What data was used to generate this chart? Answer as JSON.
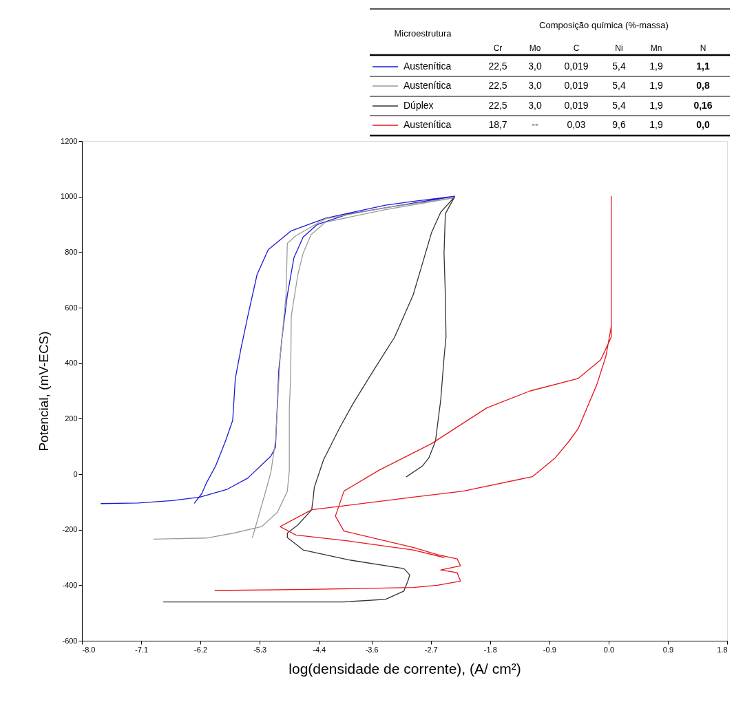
{
  "chart_data": {
    "type": "line",
    "xlabel": "log(densidade de corrente), (A/ cm²)",
    "ylabel": "Potencial, (mV-ECS)",
    "xlim": [
      -8.0,
      1.8
    ],
    "xticks": [
      {
        "value": -8.0,
        "label": "-8.0"
      },
      {
        "value": -7.1,
        "label": "-7.1"
      },
      {
        "value": -6.2,
        "label": "-6.2"
      },
      {
        "value": -5.3,
        "label": "-5.3"
      },
      {
        "value": -4.4,
        "label": "-4.4"
      },
      {
        "value": -3.6,
        "label": "-3.6"
      },
      {
        "value": -2.7,
        "label": "-2.7"
      },
      {
        "value": -1.8,
        "label": "-1.8"
      },
      {
        "value": -0.9,
        "label": "-0.9"
      },
      {
        "value": 0.0,
        "label": "0.0"
      },
      {
        "value": 0.9,
        "label": "0.9"
      },
      {
        "value": 1.8,
        "label": "1.8"
      }
    ],
    "ylim": [
      -600,
      1200
    ],
    "yticks": [
      -600,
      -400,
      -200,
      0,
      200,
      400,
      600,
      800,
      1000,
      1200
    ],
    "grid": false,
    "legend": "top right",
    "annotations": [
      "Microestrutura",
      "Composição química (%-massa)",
      "Cr",
      "Mo",
      "C",
      "Ni",
      "Mn",
      "N",
      "22,5",
      "3,0",
      "0,019",
      "5,4",
      "1,9",
      "1,1",
      "22,5",
      "3,0",
      "0,019",
      "5,4",
      "1,9",
      "0,8",
      "22,5",
      "3,0",
      "0,019",
      "5,4",
      "1,9",
      "0,16",
      "18,7",
      "--",
      "0,03",
      "9,6",
      "1,9",
      "0,0"
    ],
    "series": [
      {
        "name": "Austenítica",
        "color": "#1a1ad6",
        "x": [
          -7.71,
          -7.15,
          -6.63,
          -6.21,
          -5.79,
          -5.48,
          -5.13,
          -5.06,
          -5.01,
          -4.96,
          -4.88,
          -4.78,
          -4.64,
          -4.43,
          -3.94,
          -3.39,
          -2.34,
          -2.97,
          -3.39,
          -4.3,
          -4.82,
          -5.17,
          -5.34,
          -5.48,
          -5.58,
          -5.67,
          -5.71,
          -5.82,
          -5.97,
          -6.11,
          -6.18,
          -6.29
        ],
        "values": [
          -106,
          -104,
          -95,
          -83,
          -54,
          -14,
          65,
          97,
          374,
          494,
          645,
          780,
          854,
          899,
          938,
          960,
          1001,
          983,
          969,
          922,
          877,
          809,
          719,
          570,
          458,
          345,
          194,
          119,
          29,
          -32,
          -70,
          -104
        ]
      },
      {
        "name": "Austenítica",
        "color": "#9a9a9a",
        "x": [
          -6.91,
          -6.11,
          -5.69,
          -5.27,
          -5.03,
          -4.88,
          -4.85,
          -4.85,
          -4.83,
          -4.82,
          -4.72,
          -4.64,
          -4.52,
          -4.3,
          -3.39,
          -2.34,
          -3.39,
          -4.3,
          -4.75,
          -4.88,
          -4.9,
          -4.99,
          -5.06,
          -5.13,
          -5.2,
          -5.3,
          -5.41
        ],
        "values": [
          -234,
          -230,
          -212,
          -189,
          -137,
          -61,
          14,
          239,
          345,
          570,
          719,
          796,
          863,
          908,
          953,
          996,
          960,
          920,
          859,
          832,
          645,
          419,
          119,
          7,
          -54,
          -137,
          -228
        ]
      },
      {
        "name": "Dúplex",
        "color": "#333333",
        "x": [
          -6.76,
          -5.58,
          -4.02,
          -3.39,
          -3.11,
          -3.05,
          -3.02,
          -3.11,
          -3.94,
          -4.64,
          -4.88,
          -4.88,
          -4.72,
          -4.51,
          -4.49,
          -4.47,
          -4.33,
          -4.09,
          -3.88,
          -3.57,
          -3.25,
          -2.97,
          -2.83,
          -2.69,
          -2.55,
          -2.34,
          -2.48,
          -2.5,
          -2.48,
          -2.47,
          -2.5,
          -2.55,
          -2.63,
          -2.73,
          -2.83,
          -3.07
        ],
        "values": [
          -460,
          -460,
          -460,
          -451,
          -421,
          -385,
          -363,
          -340,
          -309,
          -273,
          -228,
          -212,
          -183,
          -128,
          -92,
          -47,
          52,
          165,
          255,
          374,
          494,
          645,
          757,
          870,
          944,
          999,
          938,
          796,
          645,
          494,
          419,
          268,
          119,
          59,
          29,
          -9
        ]
      },
      {
        "name": "Austenítica",
        "color": "#e8141c",
        "x": [
          -5.98,
          -4.54,
          -2.97,
          -2.6,
          -2.25,
          -2.3,
          -2.55,
          -2.25,
          -2.3,
          -2.6,
          -2.97,
          -4.02,
          -4.15,
          -4.02,
          -3.49,
          -2.69,
          -1.85,
          -1.19,
          -0.46,
          -0.12,
          0.04,
          0.04,
          0.04,
          -0.04,
          -0.18,
          -0.46,
          -0.6,
          -0.81,
          -1.16,
          -2.21,
          -2.97,
          -4.12,
          -4.51,
          -4.99,
          -4.75,
          -3.94,
          -2.97,
          -2.5
        ],
        "values": [
          -419,
          -415,
          -408,
          -400,
          -385,
          -355,
          -345,
          -330,
          -305,
          -290,
          -264,
          -205,
          -151,
          -61,
          14,
          110,
          239,
          300,
          345,
          412,
          494,
          1001,
          532,
          426,
          322,
          165,
          119,
          59,
          -9,
          -61,
          -83,
          -117,
          -128,
          -189,
          -219,
          -241,
          -273,
          -300
        ]
      }
    ]
  }
}
